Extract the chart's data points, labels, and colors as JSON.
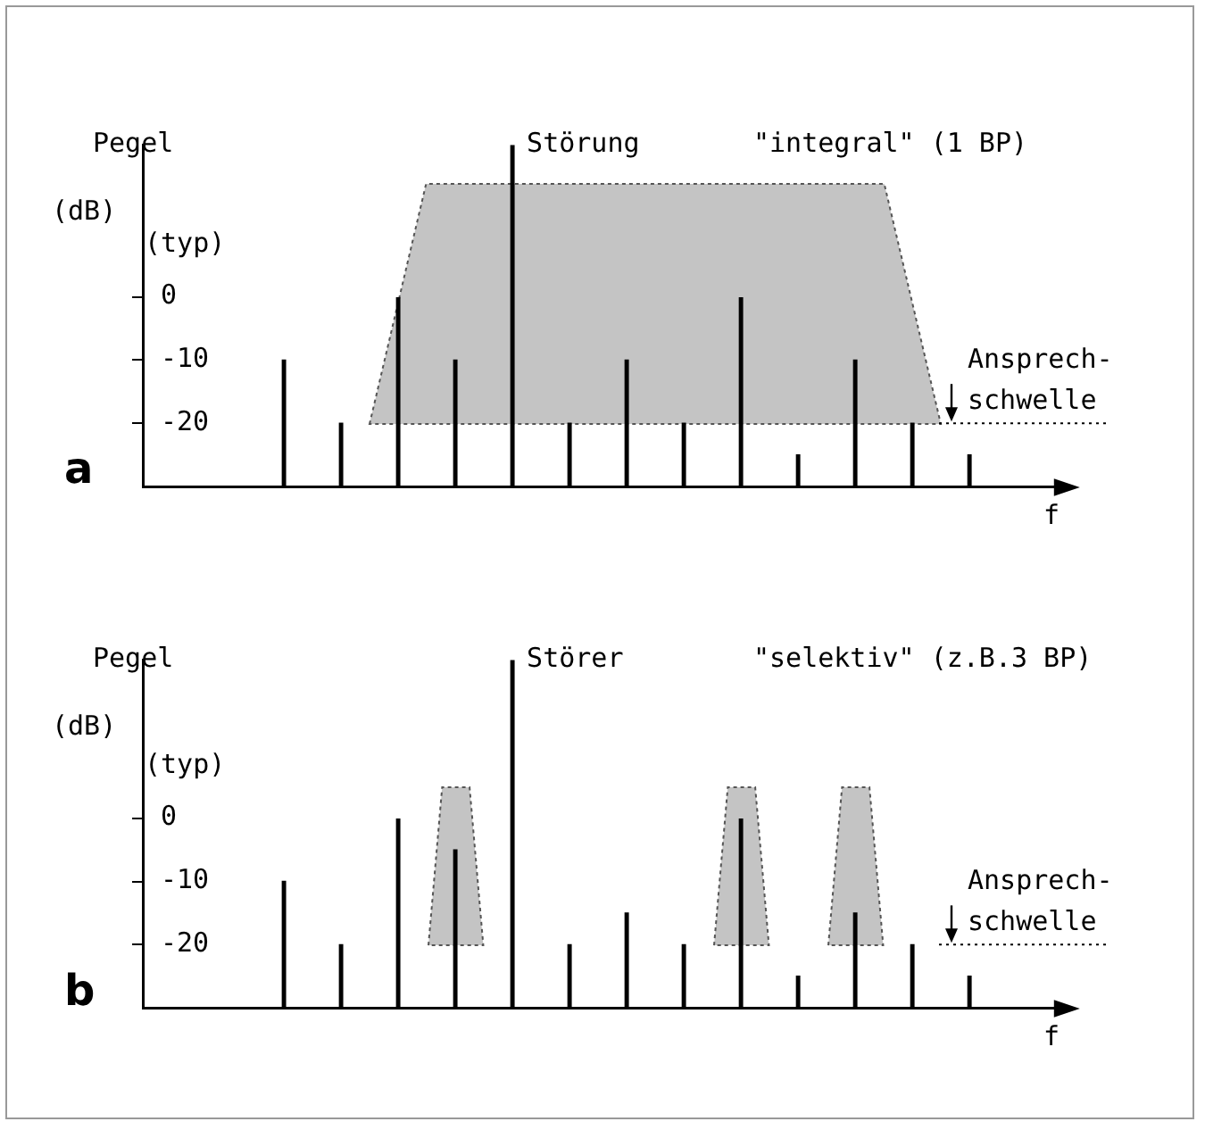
{
  "chart_data": [
    {
      "type": "bar",
      "title": "\"integral\" (1 BP)",
      "xlabel": "f",
      "ylabel": "Pegel",
      "annotations": [
        "(dB)",
        "(typ)",
        "a",
        "Störung"
      ],
      "categories": [
        null,
        null,
        null,
        null,
        null,
        null,
        null,
        null,
        null,
        null,
        null,
        null,
        null
      ],
      "ylim": [
        -30,
        24
      ],
      "yticks": [
        -20,
        -10,
        0
      ],
      "tick_labels": "y",
      "legend": false,
      "ref_lines": [
        {
          "axis": "y",
          "value": -20,
          "label": "Ansprech-\nschwelle",
          "line_style": "dotted"
        }
      ],
      "series": [
        {
          "color": "#000000",
          "base": [
            -30,
            -30,
            -30,
            -30,
            -30,
            -30,
            -30,
            -30,
            -30,
            -30,
            -30,
            -30,
            -30
          ],
          "values": [
            20,
            10,
            30,
            20,
            54,
            10,
            20,
            10,
            30,
            5,
            20,
            10,
            5
          ]
        }
      ]
    },
    {
      "type": "bar",
      "title": "\"selektiv\" (z.B.3 BP)",
      "xlabel": "f",
      "ylabel": "Pegel",
      "annotations": [
        "(dB)",
        "(typ)",
        "b",
        "Störer"
      ],
      "categories": [
        null,
        null,
        null,
        null,
        null,
        null,
        null,
        null,
        null,
        null,
        null,
        null,
        null
      ],
      "ylim": [
        -30,
        25
      ],
      "yticks": [
        -20,
        -10,
        0
      ],
      "tick_labels": "y",
      "legend": false,
      "ref_lines": [
        {
          "axis": "y",
          "value": -20,
          "label": "Ansprech-\nschwelle",
          "line_style": "dotted"
        }
      ],
      "series": [
        {
          "color": "#000000",
          "base": [
            -30,
            -30,
            -30,
            -30,
            -30,
            -30,
            -30,
            -30,
            -30,
            -30,
            -30,
            -30,
            -30
          ],
          "values": [
            20,
            10,
            30,
            25,
            55,
            10,
            15,
            10,
            30,
            5,
            15,
            10,
            5
          ]
        }
      ]
    }
  ]
}
